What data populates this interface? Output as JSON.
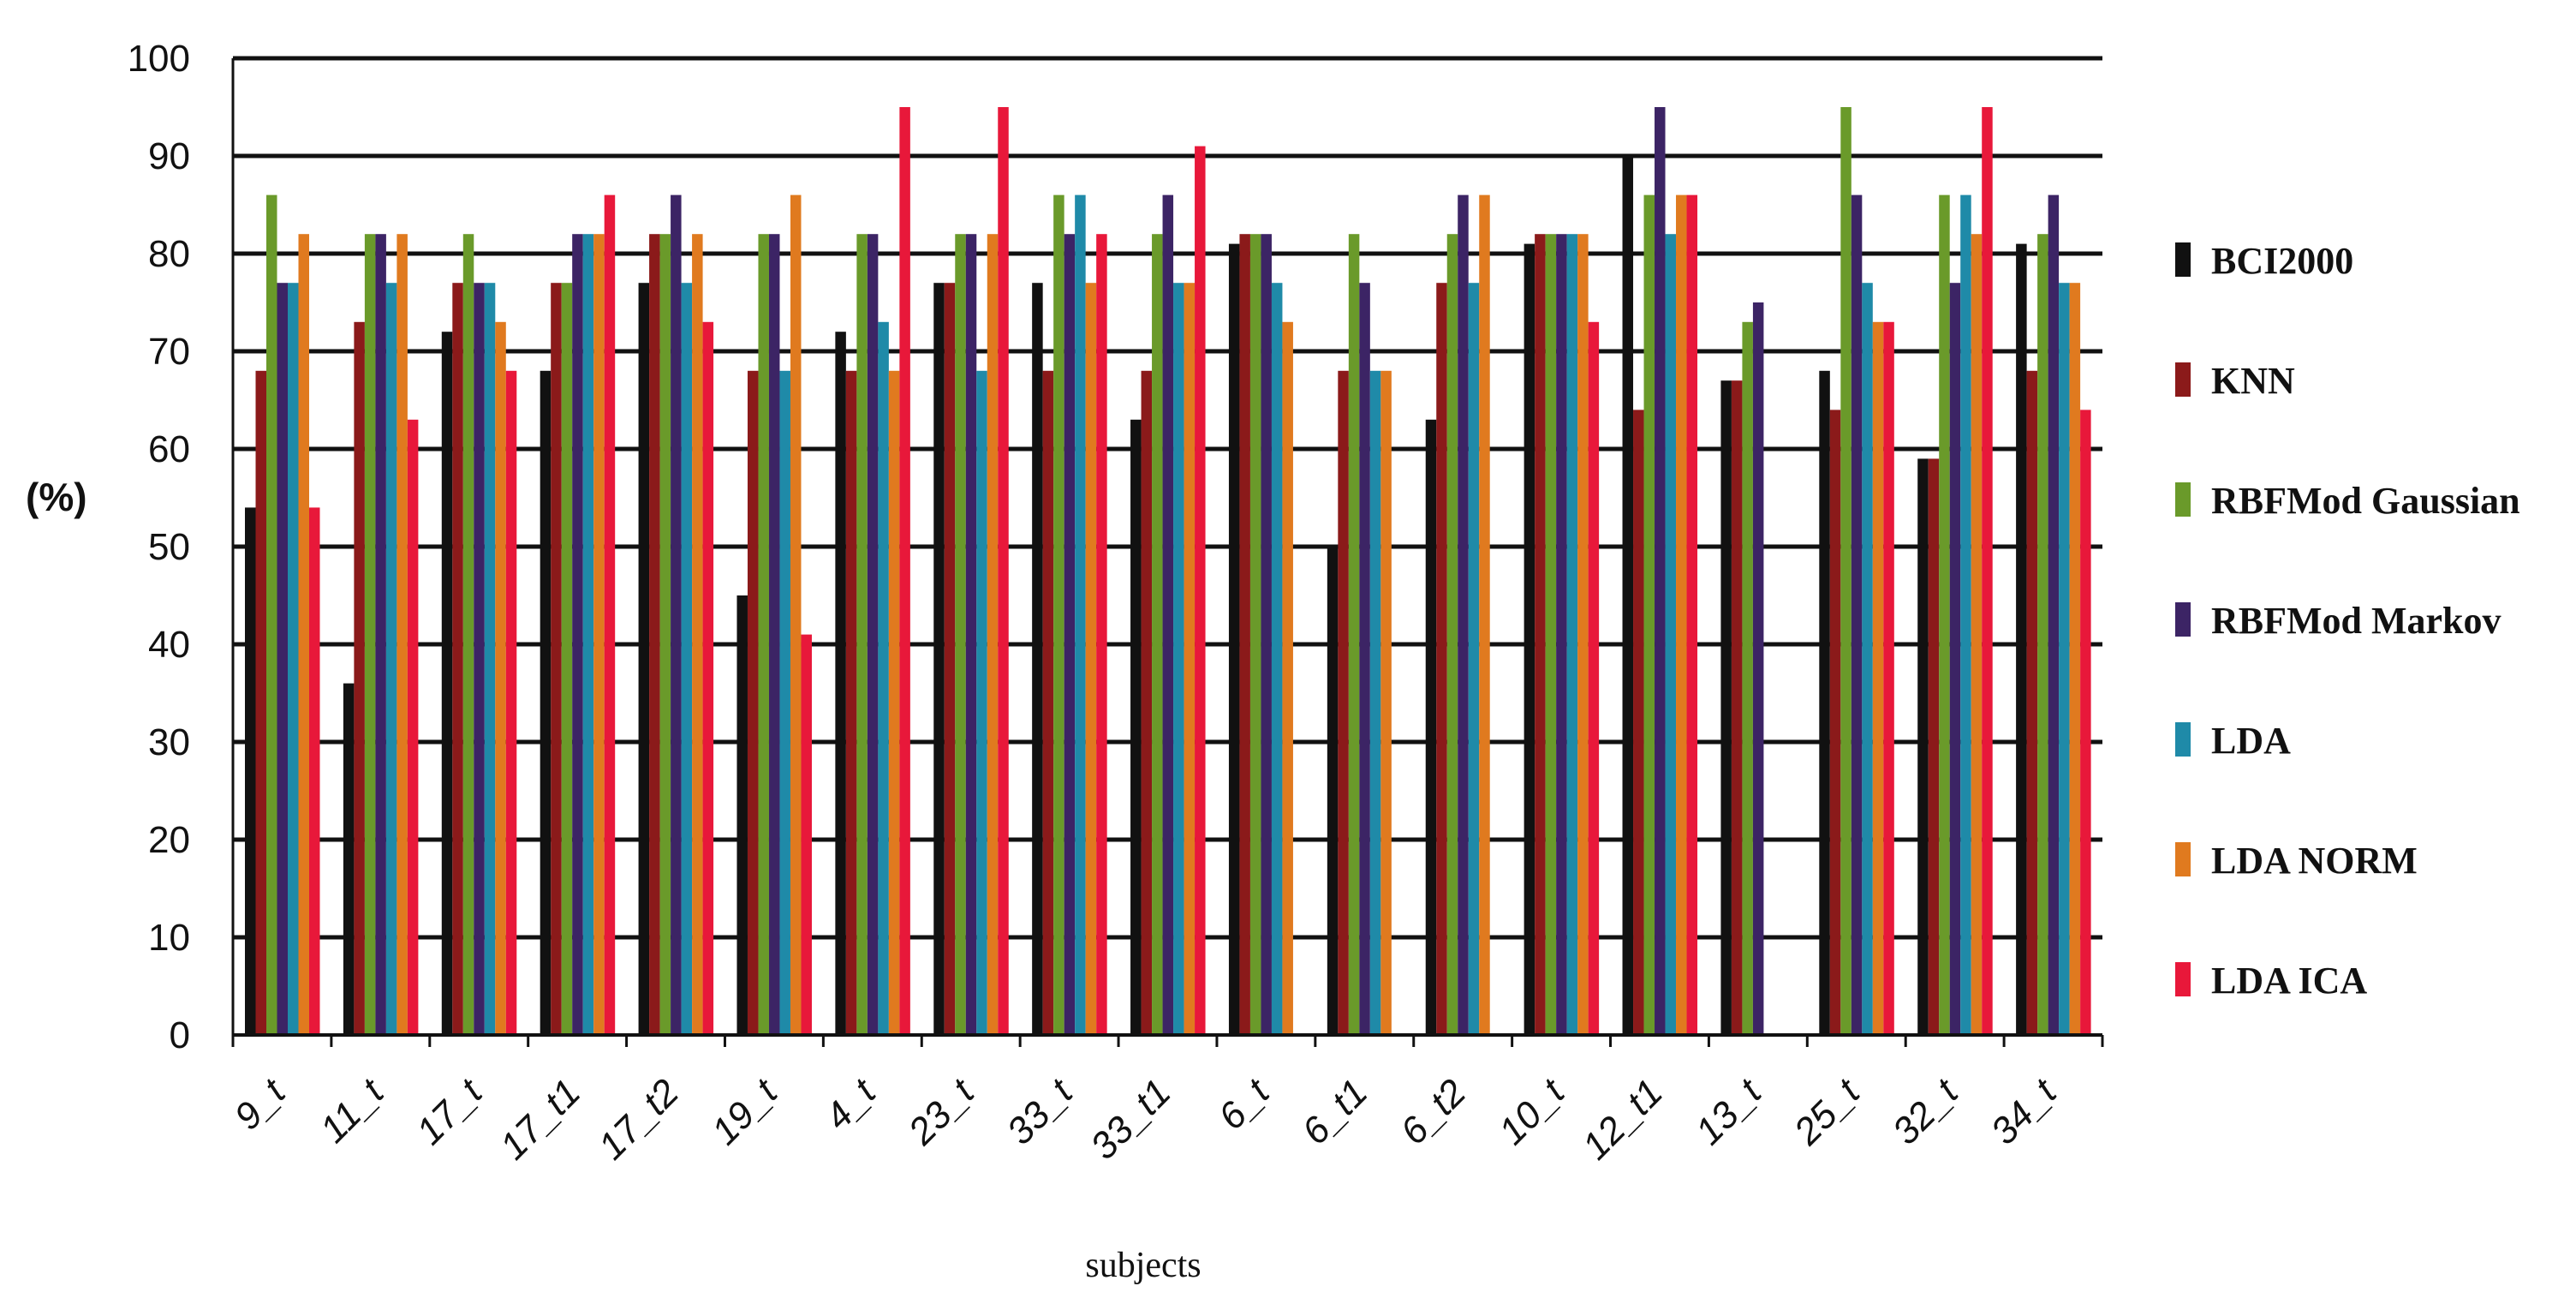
{
  "chart_data": {
    "type": "bar",
    "title": "",
    "xlabel": "subjects",
    "ylabel": "(%)",
    "ylim": [
      0,
      100
    ],
    "yticks": [
      0,
      10,
      20,
      30,
      40,
      50,
      60,
      70,
      80,
      90,
      100
    ],
    "grid": true,
    "legend_position": "right",
    "categories": [
      "9_t",
      "11_t",
      "17_t",
      "17_t1",
      "17_t2",
      "19_t",
      "4_t",
      "23_t",
      "33_t",
      "33_t1",
      "6_t",
      "6_t1",
      "6_t2",
      "10_t",
      "12_t1",
      "13_t",
      "25_t",
      "32_t",
      "34_t"
    ],
    "series": [
      {
        "name": "BCI2000",
        "color": "#111111",
        "values": [
          54,
          36,
          72,
          68,
          77,
          45,
          72,
          77,
          77,
          63,
          81,
          50,
          63,
          81,
          90,
          67,
          68,
          59,
          81
        ]
      },
      {
        "name": "KNN",
        "color": "#8b1a1a",
        "values": [
          68,
          73,
          77,
          77,
          82,
          68,
          68,
          77,
          68,
          68,
          82,
          68,
          77,
          82,
          64,
          67,
          64,
          59,
          68
        ]
      },
      {
        "name": "RBFMod Gaussian",
        "color": "#6a9a2a",
        "values": [
          86,
          82,
          82,
          77,
          82,
          82,
          82,
          82,
          86,
          82,
          82,
          82,
          82,
          82,
          86,
          73,
          95,
          86,
          82
        ]
      },
      {
        "name": "RBFMod Markov",
        "color": "#3c2465",
        "values": [
          77,
          82,
          77,
          82,
          86,
          82,
          82,
          82,
          82,
          86,
          82,
          77,
          86,
          82,
          95,
          75,
          86,
          77,
          86
        ]
      },
      {
        "name": "LDA",
        "color": "#1f8aa8",
        "values": [
          77,
          77,
          77,
          82,
          77,
          68,
          73,
          68,
          86,
          77,
          77,
          68,
          77,
          82,
          82,
          0,
          77,
          86,
          77
        ]
      },
      {
        "name": "LDA NORM",
        "color": "#e07a1f",
        "values": [
          82,
          82,
          73,
          82,
          82,
          86,
          68,
          82,
          77,
          77,
          73,
          68,
          86,
          82,
          86,
          0,
          73,
          82,
          77
        ]
      },
      {
        "name": "LDA ICA",
        "color": "#e8183a",
        "values": [
          54,
          63,
          68,
          86,
          73,
          41,
          95,
          95,
          82,
          91,
          0,
          0,
          0,
          73,
          86,
          0,
          73,
          95,
          64
        ]
      }
    ]
  }
}
